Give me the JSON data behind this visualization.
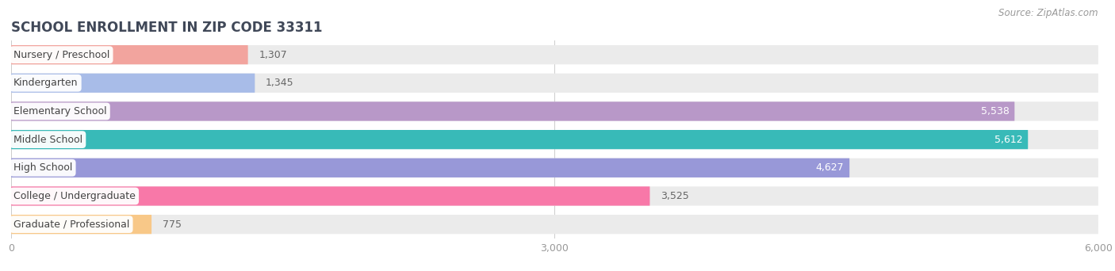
{
  "title": "SCHOOL ENROLLMENT IN ZIP CODE 33311",
  "source": "Source: ZipAtlas.com",
  "categories": [
    "Nursery / Preschool",
    "Kindergarten",
    "Elementary School",
    "Middle School",
    "High School",
    "College / Undergraduate",
    "Graduate / Professional"
  ],
  "values": [
    1307,
    1345,
    5538,
    5612,
    4627,
    3525,
    775
  ],
  "bar_colors": [
    "#f2a49e",
    "#a8bce8",
    "#b898c8",
    "#38bab8",
    "#9898d8",
    "#f878a8",
    "#f8c888"
  ],
  "bg_bar_color": "#ebebeb",
  "background_color": "#ffffff",
  "title_color": "#404858",
  "source_color": "#999999",
  "label_color": "#444444",
  "value_color_inside": "#ffffff",
  "value_color_outside": "#666666",
  "xlim": [
    0,
    6000
  ],
  "xticks": [
    0,
    3000,
    6000
  ],
  "xtick_labels": [
    "0",
    "3,000",
    "6,000"
  ],
  "title_fontsize": 12,
  "source_fontsize": 8.5,
  "label_fontsize": 9,
  "value_fontsize": 9,
  "bar_height": 0.68,
  "inside_value_threshold": 4627
}
